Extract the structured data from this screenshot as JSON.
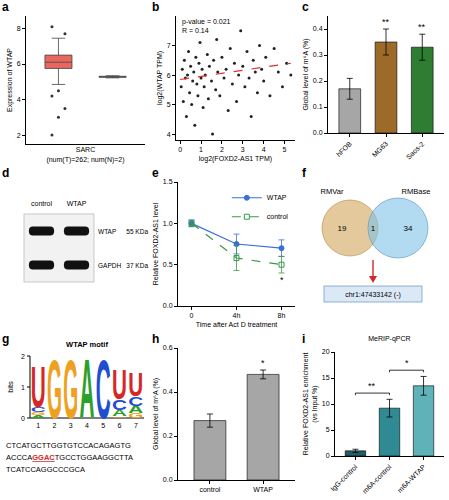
{
  "chart_data": [
    {
      "panel": "a",
      "type": "box",
      "ylabel": "Expression of WTAP",
      "xlabel": "SARC\n(num(T)=262; num(N)=2)",
      "categories": [
        null,
        null
      ],
      "tick_labels": "y",
      "grid": false,
      "boxes": [
        {
          "q1": 5.75,
          "median": 6.1,
          "q3": 6.5,
          "lower": 4.85,
          "upper": 7.45,
          "outliers": [
            2.0,
            3.0,
            3.5,
            4.2,
            4.5,
            7.7,
            8.1
          ],
          "color": "#e8685f"
        },
        {
          "q1": 5.25,
          "median": 5.28,
          "q3": 5.31,
          "lower": 5.22,
          "upper": 5.34,
          "color": "#9e9e9e"
        }
      ],
      "ylim": [
        1.5,
        8.7
      ],
      "yticks": [
        2,
        4,
        6,
        8
      ]
    },
    {
      "panel": "b",
      "type": "scatter",
      "xlabel": "log2(FOXD2-AS1 TPM)",
      "ylabel": "log2(WTAP TPM)",
      "annotations": [
        "p-value = 0.021",
        "R = 0.14"
      ],
      "grid": false,
      "color": "#222222",
      "x": [
        0.05,
        0.1,
        0.15,
        0.2,
        0.25,
        0.3,
        0.35,
        0.4,
        0.45,
        0.5,
        0.55,
        0.6,
        0.65,
        0.7,
        0.75,
        0.8,
        0.85,
        0.9,
        0.95,
        1.0,
        1.05,
        1.1,
        1.15,
        1.2,
        1.3,
        1.35,
        1.4,
        1.5,
        1.55,
        1.6,
        1.7,
        1.75,
        1.8,
        1.9,
        2.0,
        2.1,
        2.2,
        2.3,
        2.4,
        2.5,
        2.6,
        2.7,
        2.8,
        2.9,
        3.0,
        3.1,
        3.2,
        3.3,
        3.4,
        3.5,
        3.6,
        3.7,
        3.8,
        3.9,
        4.0,
        4.1,
        4.3,
        4.5,
        4.7,
        4.9,
        5.1,
        5.3
      ],
      "values": [
        5.6,
        6.2,
        5.1,
        6.5,
        5.9,
        4.6,
        6.0,
        6.8,
        5.4,
        6.3,
        5.0,
        5.8,
        6.1,
        4.3,
        6.6,
        5.7,
        5.3,
        6.4,
        7.1,
        5.9,
        6.2,
        4.9,
        5.6,
        6.0,
        6.7,
        5.2,
        6.3,
        5.8,
        4.0,
        6.5,
        5.5,
        7.2,
        6.1,
        5.3,
        6.6,
        5.9,
        6.2,
        4.8,
        6.9,
        5.7,
        6.4,
        5.1,
        6.0,
        7.5,
        6.3,
        5.6,
        6.8,
        5.9,
        4.6,
        6.5,
        6.1,
        5.4,
        7.0,
        6.2,
        5.8,
        6.6,
        5.3,
        6.9,
        6.1,
        5.6,
        6.4,
        6.0
      ],
      "fit": {
        "x": [
          0,
          5.3
        ],
        "values": [
          5.85,
          6.4
        ],
        "color": "#e0302a",
        "line_style": "dash"
      },
      "xlim": [
        -0.2,
        5.5
      ],
      "ylim": [
        3.8,
        8.0
      ],
      "xticks": [
        0,
        1,
        2,
        3,
        4,
        5
      ],
      "yticks": [
        4,
        5,
        6,
        7
      ]
    },
    {
      "panel": "c",
      "type": "bar",
      "ylabel": "Global level of m⁶A (%)",
      "grid": false,
      "categories": [
        "hFOB",
        "MG63",
        "Saos-2"
      ],
      "values": [
        0.17,
        0.35,
        0.33
      ],
      "errors": [
        0.04,
        0.05,
        0.05
      ],
      "colors": [
        "#a6a6a6",
        "#9c6b2a",
        "#2e7d32"
      ],
      "annotations": [
        {
          "x": "MG63",
          "text": "**"
        },
        {
          "x": "Saos-2",
          "text": "**"
        }
      ],
      "ylim": [
        0,
        0.45
      ],
      "yticks": [
        {
          "value": 0,
          "label": "0.0"
        },
        {
          "value": 0.1,
          "label": "0.1"
        },
        {
          "value": 0.2,
          "label": "0.2"
        },
        {
          "value": 0.3,
          "label": "0.3"
        },
        {
          "value": 0.4,
          "label": "0.4"
        }
      ]
    },
    {
      "panel": "e",
      "type": "line",
      "xlabel": "Time after Act D treatment",
      "ylabel": "Relative FOXD2-AS1 level",
      "grid": false,
      "categories": [
        "0",
        "4h",
        "8h"
      ],
      "legend": "top right",
      "series": [
        {
          "name": "WTAP",
          "color": "#3a6fd8",
          "marker": "circle",
          "line_style": "solid",
          "values": [
            1.0,
            0.75,
            0.7
          ],
          "errors": [
            0.04,
            0.12,
            0.1
          ]
        },
        {
          "name": "control",
          "color": "#3a9a4a",
          "marker": "square-open",
          "line_style": "dash",
          "values": [
            1.0,
            0.58,
            0.5
          ],
          "errors": [
            0.04,
            0.15,
            0.1
          ]
        }
      ],
      "annotations": [
        {
          "x": "8h",
          "text": "*"
        }
      ],
      "ylim": [
        0,
        1.5
      ],
      "yticks": [
        {
          "value": 0,
          "label": "0.0"
        },
        {
          "value": 0.5,
          "label": "0.5"
        },
        {
          "value": 1,
          "label": "1.0"
        },
        {
          "value": 1.5,
          "label": "1.5"
        }
      ]
    },
    {
      "panel": "h",
      "type": "bar",
      "ylabel": "Global level of m⁶A (%)",
      "grid": false,
      "categories": [
        "control",
        "WTAP"
      ],
      "values": [
        0.27,
        0.48
      ],
      "errors": [
        0.03,
        0.02
      ],
      "color": "#a6a6a6",
      "annotations": [
        {
          "x": "WTAP",
          "text": "*"
        }
      ],
      "ylim": [
        0,
        0.6
      ],
      "yticks": [
        {
          "value": 0,
          "label": "0.0"
        },
        {
          "value": 0.2,
          "label": "0.2"
        },
        {
          "value": 0.4,
          "label": "0.4"
        },
        {
          "value": 0.6,
          "label": "0.6"
        }
      ]
    },
    {
      "panel": "i",
      "type": "bar",
      "title": "MeRIP-qPCR",
      "ylabel": "Relative FOXD2-AS1 enrichment\n(vs Input %)",
      "grid": false,
      "categories": [
        "IgG-control",
        "m6A-control",
        "m6A-WTAP"
      ],
      "values": [
        1.0,
        9.2,
        13.5
      ],
      "errors": [
        0.3,
        1.7,
        1.8
      ],
      "colors": [
        "#1f5f6b",
        "#2f8a94",
        "#5fb3b8"
      ],
      "comparisons": [
        {
          "from": "IgG-control",
          "to": "m6A-control",
          "text": "**"
        },
        {
          "from": "m6A-control",
          "to": "m6A-WTAP",
          "text": "*"
        }
      ],
      "ylim": [
        0,
        20
      ],
      "yticks": [
        0,
        5,
        10,
        15,
        20
      ]
    }
  ],
  "diagrams": [
    {
      "panel": "d",
      "type": "blot",
      "lanes": [
        "control",
        "WTAP"
      ],
      "rows": [
        {
          "name": "WTAP",
          "size": "55 KDa"
        },
        {
          "name": "GAPDH",
          "size": "37 KDa"
        }
      ]
    },
    {
      "panel": "f",
      "type": "venn",
      "sets": [
        {
          "name": "RMVar",
          "only": 19,
          "color": "#d9b77a"
        },
        {
          "name": "RMBase",
          "only": 34,
          "color": "#7fc1e6"
        }
      ],
      "overlap": 1,
      "result": "chr1:47433142 (-)"
    },
    {
      "panel": "g",
      "type": "logo",
      "title": "WTAP motif",
      "ylabel": "bits",
      "ylim": [
        0,
        2
      ],
      "yticks": [
        0,
        1,
        2
      ],
      "positions": [
        1,
        2,
        3,
        4,
        5,
        6,
        7
      ],
      "stacks": [
        [
          {
            "letter": "A",
            "bits": 0.1,
            "color": "#2ca02c"
          },
          {
            "letter": "G",
            "bits": 0.1,
            "color": "#f0a020"
          },
          {
            "letter": "C",
            "bits": 0.15,
            "color": "#1f4fd0"
          },
          {
            "letter": "U",
            "bits": 1.35,
            "color": "#d62728"
          }
        ],
        [
          {
            "letter": "G",
            "bits": 1.95,
            "color": "#f0a020"
          }
        ],
        [
          {
            "letter": "G",
            "bits": 1.95,
            "color": "#f0a020"
          }
        ],
        [
          {
            "letter": "A",
            "bits": 1.95,
            "color": "#2ca02c"
          }
        ],
        [
          {
            "letter": "C",
            "bits": 1.95,
            "color": "#1f4fd0"
          }
        ],
        [
          {
            "letter": "G",
            "bits": 0.05,
            "color": "#f0a020"
          },
          {
            "letter": "A",
            "bits": 0.2,
            "color": "#2ca02c"
          },
          {
            "letter": "C",
            "bits": 0.35,
            "color": "#1f4fd0"
          },
          {
            "letter": "U",
            "bits": 1.0,
            "color": "#d62728"
          }
        ],
        [
          {
            "letter": "G",
            "bits": 0.15,
            "color": "#f0a020"
          },
          {
            "letter": "A",
            "bits": 0.25,
            "color": "#2ca02c"
          },
          {
            "letter": "C",
            "bits": 0.3,
            "color": "#1f4fd0"
          },
          {
            "letter": "U",
            "bits": 0.75,
            "color": "#d62728"
          }
        ]
      ],
      "sequence": [
        [
          {
            "text": "CTCATGCTTGGTGTCCACAGAGTG"
          }
        ],
        [
          {
            "text": "ACCCA"
          },
          {
            "text": "GGAC",
            "highlight": true
          },
          {
            "text": "TGCCTGGAAGGCTTA"
          }
        ],
        [
          {
            "text": "TCATCCAGGCCCGCA"
          }
        ]
      ]
    }
  ]
}
